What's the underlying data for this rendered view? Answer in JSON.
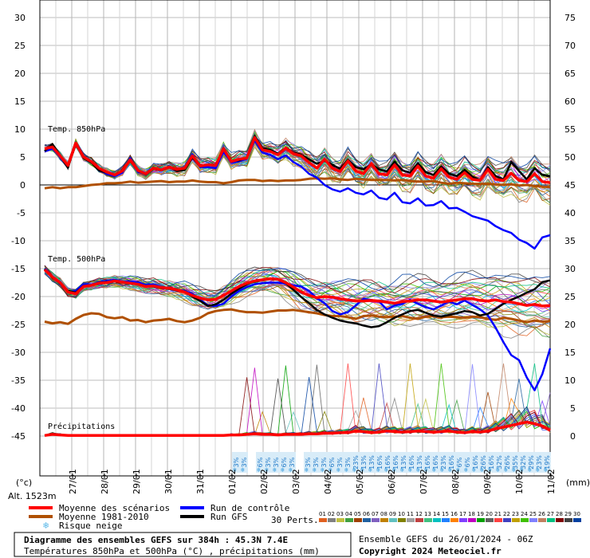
{
  "chart_data": {
    "type": "line",
    "left_axis": {
      "label": "(°c)",
      "ticks": [
        30,
        25,
        20,
        15,
        10,
        5,
        0,
        -5,
        -10,
        -15,
        -20,
        -25,
        -30,
        -35,
        -40,
        -45
      ],
      "ylim": [
        -45,
        30
      ]
    },
    "right_axis": {
      "label": "(mm)",
      "ticks": [
        75,
        70,
        65,
        60,
        55,
        50,
        45,
        40,
        35,
        30,
        25,
        20,
        15,
        10,
        5,
        0
      ],
      "ylim": [
        0,
        75
      ]
    },
    "dates": [
      "27/01",
      "28/01",
      "29/01",
      "30/01",
      "31/01",
      "01/02",
      "02/02",
      "03/02",
      "04/02",
      "05/02",
      "06/02",
      "07/02",
      "08/02",
      "09/02",
      "10/02",
      "11/02"
    ],
    "altitude": "Alt. 1523m",
    "section_labels": {
      "t850": "Temp. 850hPa",
      "t500": "Temp. 500hPa",
      "precip": "Précipitations"
    },
    "snow_risk_labels": [
      "3%",
      "3%",
      "",
      "6%",
      "3%",
      "3%",
      "6%",
      "3%",
      "",
      "3%",
      "3%",
      "3%",
      "6%",
      "3%",
      "3%",
      "23%",
      "13%",
      "13%",
      "16%",
      "16%",
      "16%",
      "13%",
      "16%",
      "13%",
      "16%",
      "16%",
      "23%",
      "16%",
      "6%",
      "6%",
      "16%",
      "26%",
      "16%",
      "32%",
      "26%",
      "35%",
      "32%",
      "29%",
      "23%",
      "19%"
    ],
    "series": [
      {
        "name": "Moyenne des scénarios",
        "color": "#ff0000",
        "t850": [
          6.5,
          6.8,
          5.2,
          3.5,
          7.5,
          5.0,
          4.2,
          3.0,
          2.3,
          1.8,
          2.5,
          4.5,
          2.6,
          2.0,
          3.0,
          2.7,
          3.2,
          2.8,
          3.0,
          5.2,
          3.4,
          3.6,
          3.5,
          6.5,
          4.2,
          4.6,
          4.8,
          8.5,
          6.3,
          6.0,
          5.4,
          6.6,
          5.6,
          5.2,
          4.0,
          3.0,
          4.6,
          3.0,
          2.4,
          4.3,
          2.5,
          2.0,
          3.8,
          2.0,
          1.8,
          3.6,
          1.8,
          1.6,
          3.4,
          1.6,
          1.2,
          2.9,
          1.4,
          1.0,
          2.2,
          1.0,
          0.8,
          2.8,
          1.0,
          0.8,
          2.1,
          0.8,
          0.6,
          2.0,
          0.6,
          0.4
        ],
        "t500": [
          -15.2,
          -16.5,
          -17.5,
          -19.2,
          -19.5,
          -18.2,
          -18.0,
          -17.6,
          -17.5,
          -17.2,
          -17.4,
          -17.6,
          -17.8,
          -18.2,
          -18.1,
          -18.4,
          -18.5,
          -18.8,
          -19.2,
          -19.8,
          -20.3,
          -20.6,
          -20.5,
          -19.8,
          -19.0,
          -18.2,
          -17.6,
          -17.2,
          -17.0,
          -16.8,
          -16.9,
          -17.5,
          -18.3,
          -19.2,
          -19.8,
          -20.2,
          -20.0,
          -20.1,
          -20.4,
          -20.6,
          -20.8,
          -20.8,
          -20.7,
          -20.8,
          -21.0,
          -21.2,
          -20.9,
          -20.8,
          -20.6,
          -20.6,
          -20.8,
          -21.0,
          -20.8,
          -20.6,
          -20.4,
          -20.4,
          -20.7,
          -20.8,
          -20.6,
          -20.9,
          -21.0,
          -21.3,
          -21.6,
          -21.4,
          -21.7,
          -21.6
        ],
        "precip": [
          0.1,
          0.3,
          0.2,
          0.1,
          0.1,
          0.1,
          0.1,
          0.1,
          0.1,
          0.1,
          0.1,
          0.1,
          0.1,
          0.1,
          0.1,
          0.1,
          0.1,
          0.1,
          0.1,
          0.1,
          0.1,
          0.1,
          0.1,
          0.1,
          0.2,
          0.2,
          0.3,
          0.4,
          0.3,
          0.3,
          0.2,
          0.3,
          0.3,
          0.3,
          0.4,
          0.4,
          0.5,
          0.5,
          0.6,
          0.6,
          0.9,
          0.8,
          0.6,
          0.7,
          0.9,
          0.8,
          0.7,
          0.8,
          0.9,
          0.8,
          0.7,
          0.8,
          0.9,
          0.7,
          0.6,
          0.8,
          0.7,
          0.9,
          1.3,
          1.6,
          1.9,
          2.2,
          2.5,
          2.2,
          1.8,
          1.0
        ]
      },
      {
        "name": "Moyenne 1981-2010",
        "color": "#b05000",
        "t850": [
          -0.6,
          -0.4,
          -0.6,
          -0.4,
          -0.4,
          -0.2,
          0.0,
          0.1,
          0.3,
          0.3,
          0.4,
          0.6,
          0.4,
          0.5,
          0.6,
          0.7,
          0.5,
          0.6,
          0.6,
          0.8,
          0.6,
          0.5,
          0.5,
          0.3,
          0.5,
          0.8,
          0.9,
          0.9,
          0.7,
          0.8,
          0.7,
          0.8,
          0.8,
          0.9,
          1.1,
          1.2,
          1.1,
          1.2,
          1.0,
          0.9,
          1.1,
          1.0,
          0.9,
          0.9,
          0.9,
          0.8,
          0.9,
          0.7,
          0.6,
          0.6,
          0.7,
          0.4,
          0.2,
          0.4,
          0.3,
          0.2,
          0.2,
          0.2,
          0.1,
          0.0,
          0.1,
          -0.1,
          0.0,
          -0.2,
          -0.3,
          -0.4
        ],
        "t500": [
          -24.5,
          -24.8,
          -24.6,
          -24.9,
          -24.0,
          -23.3,
          -23.0,
          -23.1,
          -23.7,
          -23.9,
          -23.7,
          -24.3,
          -24.2,
          -24.6,
          -24.3,
          -24.2,
          -24.0,
          -24.4,
          -24.6,
          -24.3,
          -23.8,
          -23.0,
          -22.6,
          -22.4,
          -22.3,
          -22.6,
          -22.8,
          -22.8,
          -22.9,
          -22.7,
          -22.5,
          -22.5,
          -22.4,
          -22.6,
          -22.8,
          -23.0,
          -23.3,
          -23.5,
          -23.5,
          -23.7,
          -24.0,
          -23.5,
          -23.4,
          -23.6,
          -23.7,
          -23.6,
          -23.5,
          -23.8,
          -24.0,
          -23.6,
          -23.5,
          -23.7,
          -23.6,
          -23.7,
          -23.8,
          -23.6,
          -23.7,
          -24.0,
          -24.2,
          -23.8,
          -24.0,
          -24.3,
          -24.6,
          -24.3,
          -24.5,
          -24.4
        ]
      },
      {
        "name": "Run de contrôle",
        "color": "#0000ff",
        "t850": [
          6.0,
          6.5,
          5.0,
          3.4,
          7.6,
          4.9,
          4.3,
          2.7,
          2.0,
          1.6,
          2.2,
          4.8,
          2.4,
          1.9,
          2.9,
          2.6,
          3.1,
          2.7,
          2.9,
          5.5,
          3.2,
          3.2,
          3.0,
          5.9,
          4.0,
          4.2,
          4.7,
          8.0,
          5.8,
          5.4,
          4.6,
          5.3,
          4.1,
          3.3,
          2.0,
          1.3,
          0.0,
          -0.8,
          -1.2,
          -0.6,
          -1.4,
          -1.7,
          -1.0,
          -2.3,
          -2.6,
          -1.4,
          -3.1,
          -3.3,
          -2.4,
          -3.7,
          -3.6,
          -2.9,
          -4.2,
          -4.1,
          -4.8,
          -5.6,
          -6.0,
          -6.4,
          -7.4,
          -8.1,
          -8.6,
          -9.8,
          -10.4,
          -11.4,
          -9.4,
          -9.0
        ],
        "t500": [
          -15.0,
          -16.5,
          -17.4,
          -19.3,
          -19.0,
          -17.8,
          -17.9,
          -17.4,
          -17.2,
          -17.0,
          -17.3,
          -17.3,
          -17.5,
          -17.9,
          -17.8,
          -18.3,
          -18.5,
          -18.8,
          -19.0,
          -19.5,
          -20.6,
          -21.6,
          -21.7,
          -21.3,
          -20.0,
          -19.0,
          -18.3,
          -17.8,
          -17.6,
          -17.5,
          -17.5,
          -17.7,
          -18.0,
          -18.2,
          -19.0,
          -20.3,
          -21.2,
          -22.6,
          -23.2,
          -22.8,
          -21.6,
          -20.4,
          -20.6,
          -20.9,
          -22.3,
          -21.6,
          -21.3,
          -20.6,
          -21.3,
          -21.9,
          -22.3,
          -21.6,
          -20.9,
          -21.4,
          -20.7,
          -21.5,
          -22.3,
          -23.4,
          -25.6,
          -28.2,
          -30.5,
          -31.4,
          -34.5,
          -36.8,
          -33.9,
          -29.3
        ]
      },
      {
        "name": "Run GFS",
        "color": "#000000",
        "t850": [
          6.1,
          7.3,
          5.2,
          3.1,
          7.5,
          4.8,
          4.0,
          2.6,
          2.2,
          1.8,
          2.5,
          4.3,
          2.5,
          1.9,
          2.9,
          2.6,
          3.3,
          2.5,
          2.7,
          4.9,
          3.3,
          3.6,
          3.6,
          6.4,
          4.3,
          4.4,
          4.9,
          8.7,
          6.6,
          6.3,
          5.6,
          6.7,
          5.8,
          5.4,
          4.6,
          3.8,
          4.3,
          3.6,
          2.9,
          4.5,
          3.2,
          2.8,
          3.7,
          2.8,
          2.4,
          4.2,
          2.6,
          2.2,
          3.9,
          2.3,
          1.8,
          3.3,
          2.0,
          1.6,
          2.7,
          1.5,
          0.8,
          3.2,
          1.6,
          1.0,
          4.1,
          2.5,
          1.0,
          3.0,
          1.8,
          1.5
        ],
        "t500": [
          -15.1,
          -16.6,
          -17.6,
          -19.0,
          -19.3,
          -18.1,
          -18.0,
          -17.5,
          -17.4,
          -17.3,
          -17.5,
          -17.6,
          -17.8,
          -18.1,
          -18.2,
          -18.5,
          -18.6,
          -18.9,
          -19.2,
          -20.0,
          -20.8,
          -21.7,
          -21.4,
          -20.6,
          -19.5,
          -18.6,
          -17.8,
          -17.3,
          -17.1,
          -16.9,
          -17.0,
          -17.6,
          -18.8,
          -20.1,
          -21.2,
          -22.4,
          -23.2,
          -23.8,
          -24.3,
          -24.6,
          -24.8,
          -25.2,
          -25.5,
          -25.3,
          -24.6,
          -23.8,
          -23.2,
          -22.6,
          -22.4,
          -22.9,
          -23.4,
          -23.6,
          -23.3,
          -23.0,
          -22.6,
          -22.8,
          -23.4,
          -23.1,
          -22.2,
          -21.3,
          -20.6,
          -20.0,
          -19.3,
          -18.7,
          -17.4,
          -17.1
        ]
      }
    ]
  },
  "legend": {
    "items": [
      {
        "label": "Moyenne des scénarios",
        "color": "#ff0000"
      },
      {
        "label": "Moyenne 1981-2010",
        "color": "#b05000"
      },
      {
        "label": "Run de contrôle",
        "color": "#0000ff"
      },
      {
        "label": "Run GFS",
        "color": "#000000"
      }
    ],
    "snow_label": "Risque neige",
    "perts_label": "30 Perts.",
    "perts_numbers": [
      "01",
      "02",
      "03",
      "04",
      "05",
      "06",
      "07",
      "08",
      "09",
      "10",
      "11",
      "12",
      "13",
      "14",
      "15",
      "16",
      "17",
      "18",
      "19",
      "20",
      "21",
      "22",
      "23",
      "24",
      "25",
      "26",
      "27",
      "28",
      "29",
      "30"
    ],
    "perts_colors": [
      "#e06020",
      "#808080",
      "#c0c040",
      "#40a040",
      "#a04000",
      "#2060a0",
      "#8060c0",
      "#c08000",
      "#60c0c0",
      "#808000",
      "#a0a0a0",
      "#c04040",
      "#40c080",
      "#00c0c0",
      "#2080ff",
      "#ff8000",
      "#8040ff",
      "#c000c0",
      "#00a000",
      "#606060",
      "#ff4040",
      "#4040c0",
      "#c0a000",
      "#40c000",
      "#8080ff",
      "#c08060",
      "#00c080",
      "#800000",
      "#404040",
      "#0040a0"
    ]
  },
  "footer": {
    "title": "Diagramme des ensembles GEFS sur 384h : 45.3N 7.4E",
    "subtitle": "Températures 850hPa et 500hPa (°C) , précipitations (mm)",
    "run_info": "Ensemble GEFS du 26/01/2024 - 06Z",
    "copyright": "Copyright 2024 Meteociel.fr"
  }
}
